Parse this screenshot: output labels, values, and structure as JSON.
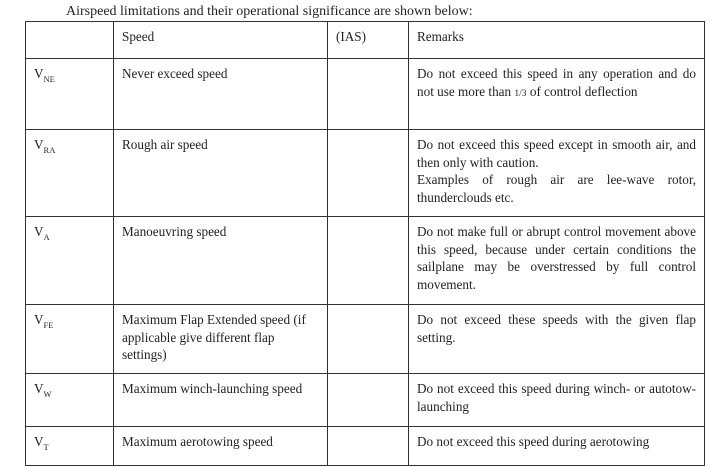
{
  "intro": "Airspeed limitations and their operational significance are shown below:",
  "headers": {
    "symbol": "",
    "speed": "Speed",
    "ias": "(IAS)",
    "remarks": "Remarks"
  },
  "rows": [
    {
      "v": "V",
      "sub": "NE",
      "speed": "Never exceed speed",
      "ias": "",
      "remarks_pre": "Do not exceed this speed in any operation and do not use more than ",
      "remarks_frac": "1/3",
      "remarks_post": " of control deflection"
    },
    {
      "v": "V",
      "sub": "RA",
      "speed": "Rough air speed",
      "ias": "",
      "remarks": "Do not exceed this speed except in smooth air, and then only with caution.",
      "remarks2": "Examples of rough air are lee-wave rotor, thunderclouds etc."
    },
    {
      "v": "V",
      "sub": "A",
      "speed": "Manoeuvring speed",
      "ias": "",
      "remarks": "Do not make full or abrupt control movement above this speed, because under certain conditions the sailplane may be overstressed by full control movement."
    },
    {
      "v": "V",
      "sub": "FE",
      "speed": "Maximum Flap Extended speed (if applicable give different flap settings)",
      "ias": "",
      "remarks": "Do not exceed these speeds with the given flap setting."
    },
    {
      "v": "V",
      "sub": "W",
      "speed": "Maximum winch-launching speed",
      "ias": "",
      "remarks": "Do not exceed this speed during winch- or autotow-launching"
    },
    {
      "v": "V",
      "sub": "T",
      "speed": "Maximum aerotowing speed",
      "ias": "",
      "remarks": "Do not exceed this speed during aerotowing"
    }
  ]
}
